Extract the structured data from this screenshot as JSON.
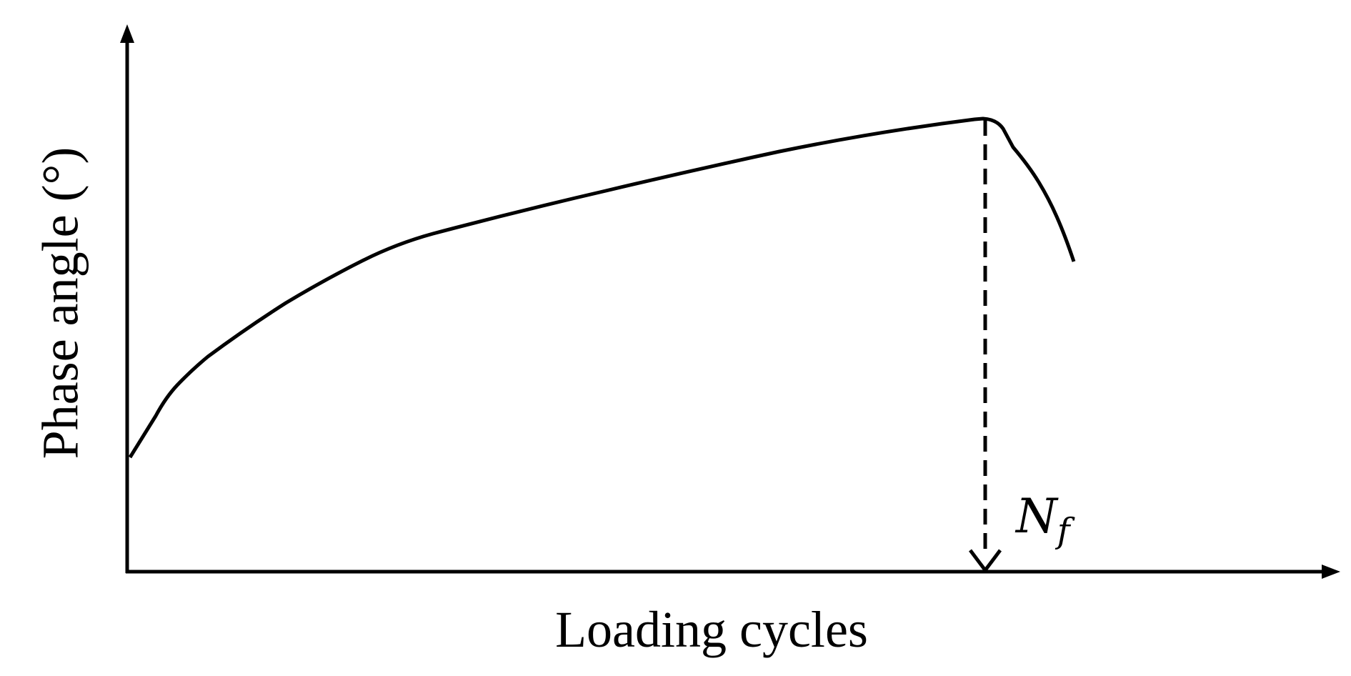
{
  "y_axis": {
    "label": "Phase angle (°)"
  },
  "x_axis": {
    "label": "Loading cycles"
  },
  "annotation": {
    "symbol": "N",
    "subscript": "f"
  }
}
